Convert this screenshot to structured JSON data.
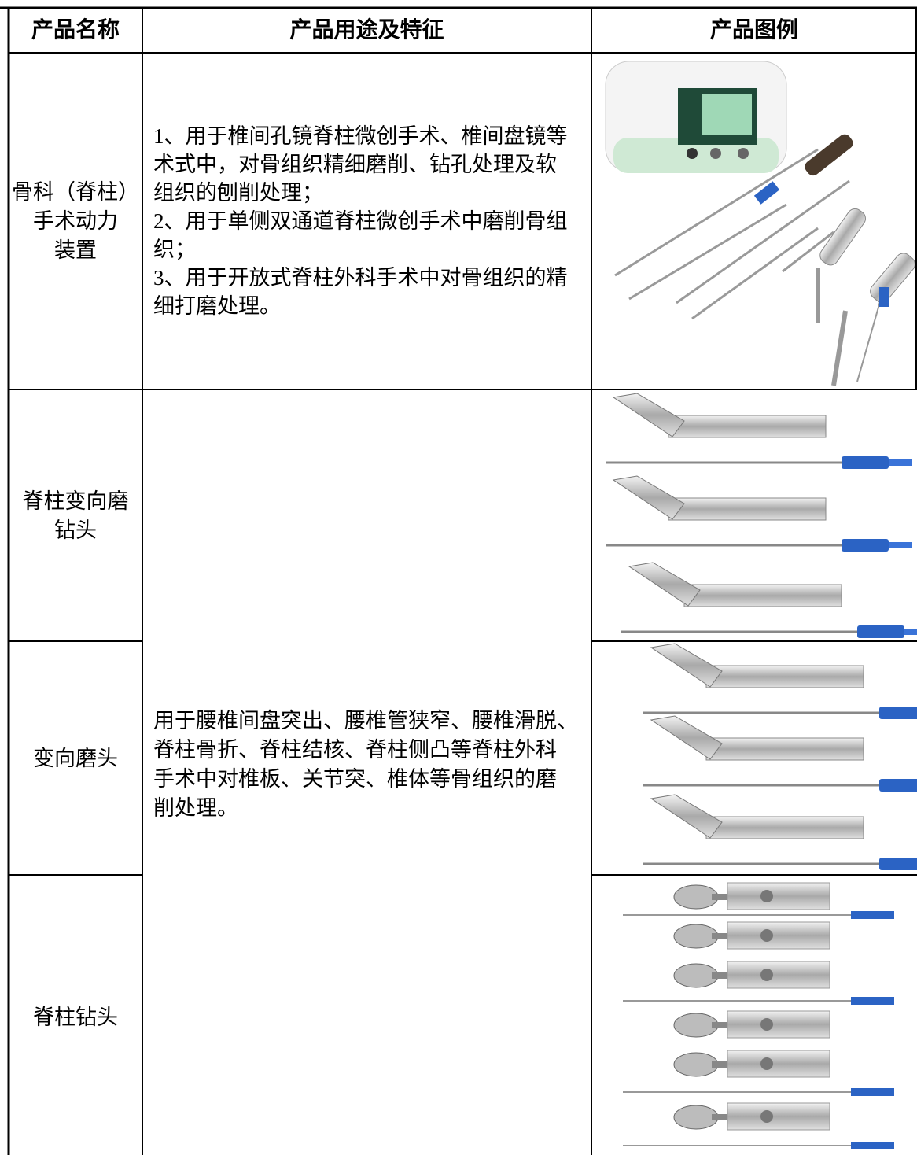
{
  "table": {
    "header": [
      "产品名称",
      "产品用途及特征",
      "产品图例"
    ],
    "rows": [
      {
        "name_lines": [
          "骨科（脊柱）",
          "手术动力",
          "装置"
        ],
        "description_lines": [
          "1、用于椎间孔镜脊柱微创手术、椎间盘镜等",
          "术式中，对骨组织精细磨削、钻孔处理及软",
          "组织的刨削处理；",
          "2、用于单侧双通道脊柱微创手术中磨削骨组",
          "织；",
          "3、用于开放式脊柱外科手术中对骨组织的精",
          "细打磨处理。"
        ]
      },
      {
        "name_lines": [
          "脊柱变向磨",
          "钻头"
        ]
      },
      {
        "name_lines": [
          "变向磨头"
        ]
      },
      {
        "name_lines": [
          "脊柱钻头"
        ]
      }
    ],
    "shared_description_lines": [
      "用于腰椎间盘突出、腰椎管狭窄、腰椎滑脱、",
      "脊柱骨折、脊柱结核、脊柱侧凸等脊柱外科",
      "手术中对椎板、关节突、椎体等骨组织的磨",
      "削处理。"
    ]
  }
}
